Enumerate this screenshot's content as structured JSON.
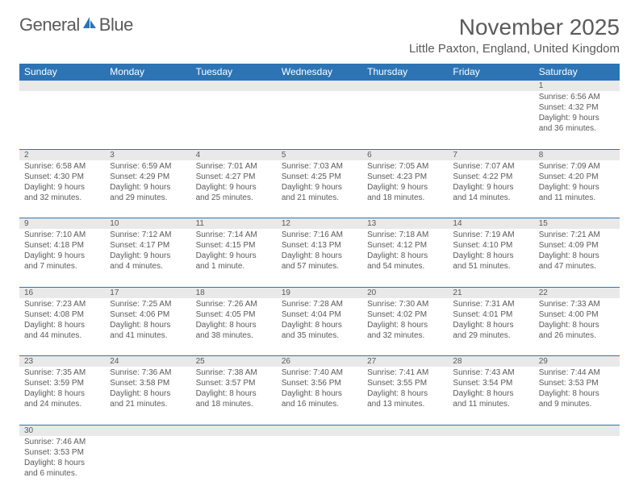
{
  "logo": {
    "text1": "General",
    "text2": "Blue"
  },
  "title": "November 2025",
  "location": "Little Paxton, England, United Kingdom",
  "colors": {
    "header_bg": "#2d74b5",
    "header_fg": "#ffffff",
    "daynum_bg": "#e9e9e9",
    "text": "#5a5a5a",
    "cell_border": "#2d74b5"
  },
  "weekdays": [
    "Sunday",
    "Monday",
    "Tuesday",
    "Wednesday",
    "Thursday",
    "Friday",
    "Saturday"
  ],
  "weeks": [
    [
      null,
      null,
      null,
      null,
      null,
      null,
      {
        "n": "1",
        "sunrise": "6:56 AM",
        "sunset": "4:32 PM",
        "dl1": "9 hours",
        "dl2": "36 minutes."
      }
    ],
    [
      {
        "n": "2",
        "sunrise": "6:58 AM",
        "sunset": "4:30 PM",
        "dl1": "9 hours",
        "dl2": "32 minutes."
      },
      {
        "n": "3",
        "sunrise": "6:59 AM",
        "sunset": "4:29 PM",
        "dl1": "9 hours",
        "dl2": "29 minutes."
      },
      {
        "n": "4",
        "sunrise": "7:01 AM",
        "sunset": "4:27 PM",
        "dl1": "9 hours",
        "dl2": "25 minutes."
      },
      {
        "n": "5",
        "sunrise": "7:03 AM",
        "sunset": "4:25 PM",
        "dl1": "9 hours",
        "dl2": "21 minutes."
      },
      {
        "n": "6",
        "sunrise": "7:05 AM",
        "sunset": "4:23 PM",
        "dl1": "9 hours",
        "dl2": "18 minutes."
      },
      {
        "n": "7",
        "sunrise": "7:07 AM",
        "sunset": "4:22 PM",
        "dl1": "9 hours",
        "dl2": "14 minutes."
      },
      {
        "n": "8",
        "sunrise": "7:09 AM",
        "sunset": "4:20 PM",
        "dl1": "9 hours",
        "dl2": "11 minutes."
      }
    ],
    [
      {
        "n": "9",
        "sunrise": "7:10 AM",
        "sunset": "4:18 PM",
        "dl1": "9 hours",
        "dl2": "7 minutes."
      },
      {
        "n": "10",
        "sunrise": "7:12 AM",
        "sunset": "4:17 PM",
        "dl1": "9 hours",
        "dl2": "4 minutes."
      },
      {
        "n": "11",
        "sunrise": "7:14 AM",
        "sunset": "4:15 PM",
        "dl1": "9 hours",
        "dl2": "1 minute."
      },
      {
        "n": "12",
        "sunrise": "7:16 AM",
        "sunset": "4:13 PM",
        "dl1": "8 hours",
        "dl2": "57 minutes."
      },
      {
        "n": "13",
        "sunrise": "7:18 AM",
        "sunset": "4:12 PM",
        "dl1": "8 hours",
        "dl2": "54 minutes."
      },
      {
        "n": "14",
        "sunrise": "7:19 AM",
        "sunset": "4:10 PM",
        "dl1": "8 hours",
        "dl2": "51 minutes."
      },
      {
        "n": "15",
        "sunrise": "7:21 AM",
        "sunset": "4:09 PM",
        "dl1": "8 hours",
        "dl2": "47 minutes."
      }
    ],
    [
      {
        "n": "16",
        "sunrise": "7:23 AM",
        "sunset": "4:08 PM",
        "dl1": "8 hours",
        "dl2": "44 minutes."
      },
      {
        "n": "17",
        "sunrise": "7:25 AM",
        "sunset": "4:06 PM",
        "dl1": "8 hours",
        "dl2": "41 minutes."
      },
      {
        "n": "18",
        "sunrise": "7:26 AM",
        "sunset": "4:05 PM",
        "dl1": "8 hours",
        "dl2": "38 minutes."
      },
      {
        "n": "19",
        "sunrise": "7:28 AM",
        "sunset": "4:04 PM",
        "dl1": "8 hours",
        "dl2": "35 minutes."
      },
      {
        "n": "20",
        "sunrise": "7:30 AM",
        "sunset": "4:02 PM",
        "dl1": "8 hours",
        "dl2": "32 minutes."
      },
      {
        "n": "21",
        "sunrise": "7:31 AM",
        "sunset": "4:01 PM",
        "dl1": "8 hours",
        "dl2": "29 minutes."
      },
      {
        "n": "22",
        "sunrise": "7:33 AM",
        "sunset": "4:00 PM",
        "dl1": "8 hours",
        "dl2": "26 minutes."
      }
    ],
    [
      {
        "n": "23",
        "sunrise": "7:35 AM",
        "sunset": "3:59 PM",
        "dl1": "8 hours",
        "dl2": "24 minutes."
      },
      {
        "n": "24",
        "sunrise": "7:36 AM",
        "sunset": "3:58 PM",
        "dl1": "8 hours",
        "dl2": "21 minutes."
      },
      {
        "n": "25",
        "sunrise": "7:38 AM",
        "sunset": "3:57 PM",
        "dl1": "8 hours",
        "dl2": "18 minutes."
      },
      {
        "n": "26",
        "sunrise": "7:40 AM",
        "sunset": "3:56 PM",
        "dl1": "8 hours",
        "dl2": "16 minutes."
      },
      {
        "n": "27",
        "sunrise": "7:41 AM",
        "sunset": "3:55 PM",
        "dl1": "8 hours",
        "dl2": "13 minutes."
      },
      {
        "n": "28",
        "sunrise": "7:43 AM",
        "sunset": "3:54 PM",
        "dl1": "8 hours",
        "dl2": "11 minutes."
      },
      {
        "n": "29",
        "sunrise": "7:44 AM",
        "sunset": "3:53 PM",
        "dl1": "8 hours",
        "dl2": "9 minutes."
      }
    ],
    [
      {
        "n": "30",
        "sunrise": "7:46 AM",
        "sunset": "3:53 PM",
        "dl1": "8 hours",
        "dl2": "6 minutes."
      },
      null,
      null,
      null,
      null,
      null,
      null
    ]
  ],
  "labels": {
    "sunrise": "Sunrise:",
    "sunset": "Sunset:",
    "daylight": "Daylight:",
    "and": "and"
  }
}
